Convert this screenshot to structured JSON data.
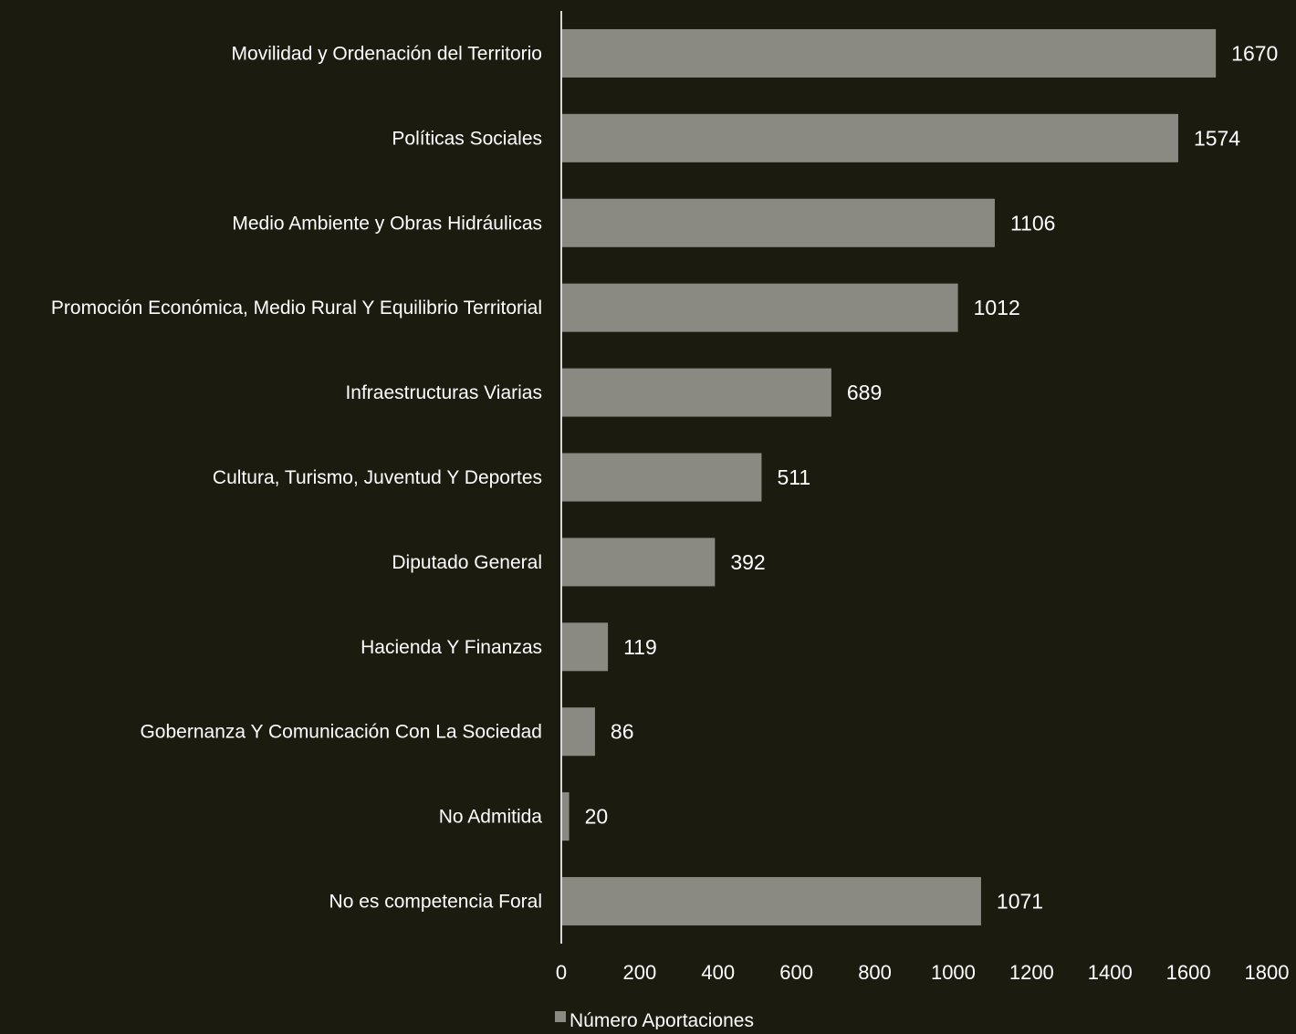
{
  "chart_data": {
    "type": "bar",
    "orientation": "horizontal",
    "categories": [
      "Movilidad y Ordenación del Territorio",
      "Políticas Sociales",
      "Medio Ambiente y Obras Hidráulicas",
      "Promoción Económica, Medio Rural Y Equilibrio Territorial",
      "Infraestructuras Viarias",
      "Cultura, Turismo, Juventud Y Deportes",
      "Diputado General",
      "Hacienda Y Finanzas",
      "Gobernanza Y Comunicación Con La Sociedad",
      "No Admitida",
      "No es competencia Foral"
    ],
    "series": [
      {
        "name": "Número Aportaciones",
        "values": [
          1670,
          1574,
          1106,
          1012,
          689,
          511,
          392,
          119,
          86,
          20,
          1071
        ]
      }
    ],
    "data_labels": [
      "1670",
      "1574",
      "1106",
      "1012",
      "689",
      "511",
      "392",
      "119",
      "86",
      "20",
      "1071"
    ],
    "x_ticks": [
      "0",
      "200",
      "400",
      "600",
      "800",
      "1000",
      "1200",
      "1400",
      "1600",
      "1800"
    ],
    "xlim": [
      0,
      1800
    ],
    "grid": false,
    "legend_position": "bottom",
    "colors": {
      "background": "#1b1b10",
      "bar": "#8a8a82",
      "axis": "#d9d9d9",
      "text": "#ffffff"
    }
  }
}
